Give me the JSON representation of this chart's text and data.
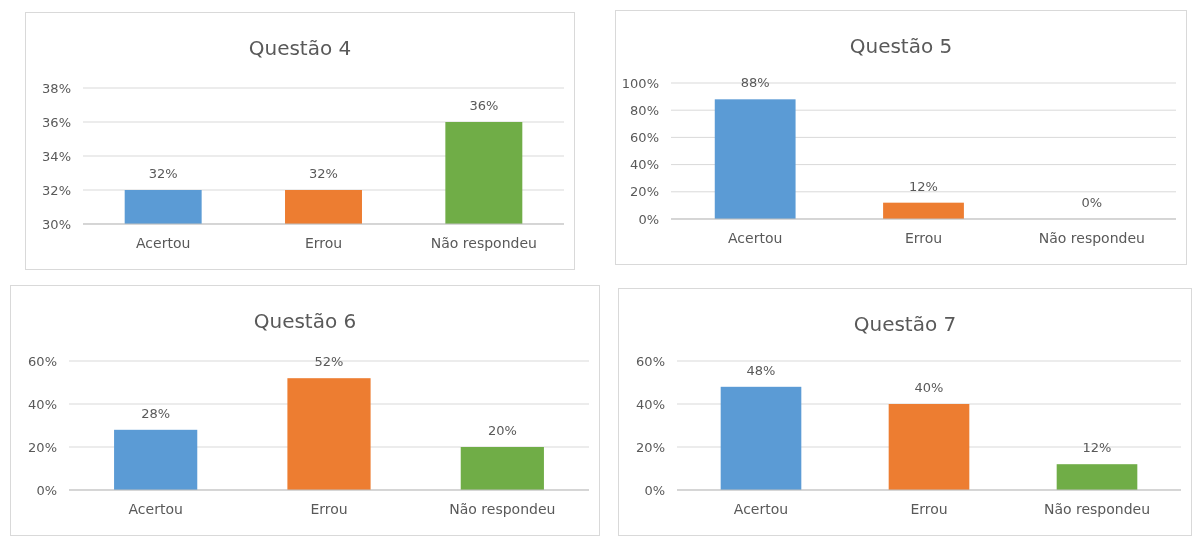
{
  "chart_data": [
    {
      "type": "bar",
      "title": "Questão 4",
      "categories": [
        "Acertou",
        "Errou",
        "Não respondeu"
      ],
      "values": [
        32,
        32,
        36
      ],
      "colors": [
        "#5b9bd5",
        "#ed7d31",
        "#70ad47"
      ],
      "value_labels": [
        "32%",
        "32%",
        "36%"
      ],
      "ylim": [
        30,
        38
      ],
      "yticks": [
        {
          "value": 30,
          "label": "30%"
        },
        {
          "value": 32,
          "label": "32%"
        },
        {
          "value": 34,
          "label": "34%"
        },
        {
          "value": 36,
          "label": "36%"
        },
        {
          "value": 38,
          "label": "38%"
        }
      ],
      "grid": "y"
    },
    {
      "type": "bar",
      "title": "Questão 5",
      "categories": [
        "Acertou",
        "Errou",
        "Não respondeu"
      ],
      "values": [
        88,
        12,
        0
      ],
      "colors": [
        "#5b9bd5",
        "#ed7d31",
        "#70ad47"
      ],
      "value_labels": [
        "88%",
        "12%",
        "0%"
      ],
      "ylim": [
        0,
        100
      ],
      "yticks": [
        {
          "value": 0,
          "label": "0%"
        },
        {
          "value": 20,
          "label": "20%"
        },
        {
          "value": 40,
          "label": "40%"
        },
        {
          "value": 60,
          "label": "60%"
        },
        {
          "value": 80,
          "label": "80%"
        },
        {
          "value": 100,
          "label": "100%"
        }
      ],
      "grid": "y"
    },
    {
      "type": "bar",
      "title": "Questão 6",
      "categories": [
        "Acertou",
        "Errou",
        "Não respondeu"
      ],
      "values": [
        28,
        52,
        20
      ],
      "colors": [
        "#5b9bd5",
        "#ed7d31",
        "#70ad47"
      ],
      "value_labels": [
        "28%",
        "52%",
        "20%"
      ],
      "ylim": [
        0,
        60
      ],
      "yticks": [
        {
          "value": 0,
          "label": "0%"
        },
        {
          "value": 20,
          "label": "20%"
        },
        {
          "value": 40,
          "label": "40%"
        },
        {
          "value": 60,
          "label": "60%"
        }
      ],
      "grid": "y"
    },
    {
      "type": "bar",
      "title": "Questão 7",
      "categories": [
        "Acertou",
        "Errou",
        "Não respondeu"
      ],
      "values": [
        48,
        40,
        12
      ],
      "colors": [
        "#5b9bd5",
        "#ed7d31",
        "#70ad47"
      ],
      "value_labels": [
        "48%",
        "40%",
        "12%"
      ],
      "ylim": [
        0,
        60
      ],
      "yticks": [
        {
          "value": 0,
          "label": "0%"
        },
        {
          "value": 20,
          "label": "20%"
        },
        {
          "value": 40,
          "label": "40%"
        },
        {
          "value": 60,
          "label": "60%"
        }
      ],
      "grid": "y"
    }
  ]
}
